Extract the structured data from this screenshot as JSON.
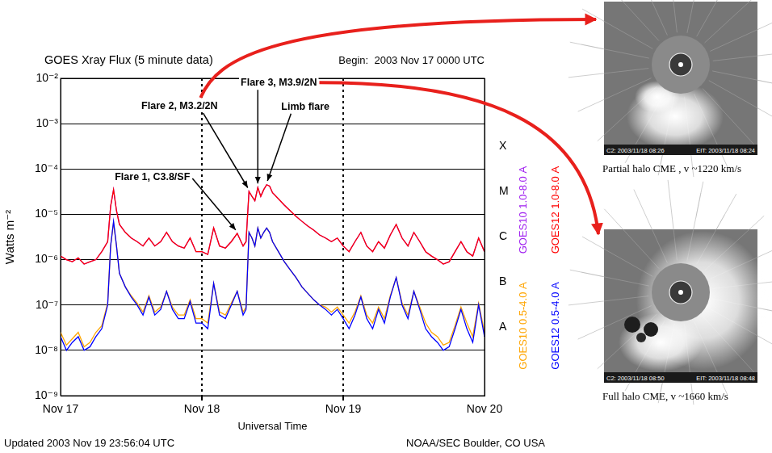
{
  "chart_data": {
    "type": "line",
    "title": "GOES Xray Flux (5 minute data)",
    "subtitle": "Begin:  2003 Nov 17 0000 UTC",
    "x_label": "Universal Time",
    "y_label": "Watts m⁻²",
    "log": "y",
    "grid": true,
    "legend": "right",
    "x": [
      0,
      1,
      2,
      3,
      4,
      5,
      6,
      7,
      8,
      8.5,
      9,
      9.5,
      10,
      11,
      12,
      13,
      14,
      15,
      16,
      17,
      18,
      19,
      20,
      21,
      22,
      23,
      24,
      25,
      26,
      27,
      28,
      29,
      30,
      31,
      31.5,
      32,
      32.5,
      33,
      33.5,
      34,
      34.5,
      35,
      35.5,
      36,
      37,
      38,
      39,
      40,
      41,
      42,
      43,
      44,
      45,
      46,
      47,
      48,
      49,
      50,
      51,
      52,
      53,
      54,
      55,
      56,
      57,
      58,
      59,
      60,
      61,
      62,
      63,
      64,
      65,
      66,
      67,
      68,
      69,
      70,
      71,
      72
    ],
    "xlim": [
      0,
      72
    ],
    "xticks": [
      {
        "value": 0,
        "label": "Nov 17"
      },
      {
        "value": 24,
        "label": "Nov 18"
      },
      {
        "value": 48,
        "label": "Nov 19"
      },
      {
        "value": 72,
        "label": "Nov 20"
      }
    ],
    "ylim": [
      1e-09,
      0.01
    ],
    "yticks": [
      {
        "value": 1e-09,
        "label": "10⁻⁹"
      },
      {
        "value": 1e-08,
        "label": "10⁻⁸"
      },
      {
        "value": 1e-07,
        "label": "10⁻⁷"
      },
      {
        "value": 1e-06,
        "label": "10⁻⁶"
      },
      {
        "value": 1e-05,
        "label": "10⁻⁵"
      },
      {
        "value": 0.0001,
        "label": "10⁻⁴"
      },
      {
        "value": 0.001,
        "label": "10⁻³"
      },
      {
        "value": 0.01,
        "label": "10⁻²"
      }
    ],
    "y2lim": [
      1e-09,
      0.01
    ],
    "y2ticks": [
      {
        "value": 3.2e-08,
        "label": "A"
      },
      {
        "value": 3.2e-07,
        "label": "B"
      },
      {
        "value": 3.2e-06,
        "label": "C"
      },
      {
        "value": 3.2e-05,
        "label": "M"
      },
      {
        "value": 0.00032,
        "label": "X"
      }
    ],
    "series": [
      {
        "name": "GOES12 1.0-8.0 A",
        "color": "#ff0000",
        "values": [
          1.2e-06,
          1e-06,
          9e-07,
          1.1e-06,
          8e-07,
          9e-07,
          1e-06,
          1.5e-06,
          2.5e-06,
          1.5e-05,
          3.5e-05,
          1.2e-05,
          6e-06,
          4e-06,
          3e-06,
          2.5e-06,
          2e-06,
          3e-06,
          2e-06,
          2.5e-06,
          4e-06,
          2.5e-06,
          2e-06,
          1.8e-06,
          3e-06,
          1.5e-06,
          1.5e-06,
          1.3e-06,
          5e-06,
          2e-06,
          1.8e-06,
          2.5e-06,
          3.8e-06,
          2e-06,
          2.5e-06,
          3.2e-05,
          2.5e-05,
          2e-05,
          3.9e-05,
          2.5e-05,
          3.5e-05,
          4.5e-05,
          4.2e-05,
          3e-05,
          2.2e-05,
          1.6e-05,
          1.2e-05,
          9e-06,
          7e-06,
          5.5e-06,
          4.5e-06,
          3.5e-06,
          3e-06,
          2.5e-06,
          3e-06,
          2e-06,
          1.5e-06,
          2.5e-06,
          4e-06,
          2e-06,
          1.5e-06,
          2.5e-06,
          1.8e-06,
          3.5e-06,
          6e-06,
          3e-06,
          2e-06,
          4e-06,
          2.5e-06,
          1.5e-06,
          1.2e-06,
          1e-06,
          8e-07,
          9e-07,
          1.5e-06,
          2.5e-06,
          1.5e-06,
          1.2e-06,
          3e-06,
          1.5e-06
        ]
      },
      {
        "name": "GOES12 0.5-4.0 A",
        "color": "#0000ff",
        "values": [
          2e-08,
          1e-08,
          1.5e-08,
          2e-08,
          1e-08,
          1.2e-08,
          2e-08,
          3e-08,
          1e-07,
          2e-06,
          7e-06,
          2e-06,
          5e-07,
          2.5e-07,
          1.5e-07,
          1e-07,
          6e-08,
          1.5e-07,
          6e-08,
          8e-08,
          2e-07,
          8e-08,
          5e-08,
          5e-08,
          1.2e-07,
          4e-08,
          4e-08,
          3e-08,
          3e-07,
          6e-08,
          5e-08,
          1e-07,
          2e-07,
          6e-08,
          8e-08,
          4e-06,
          3e-06,
          2e-06,
          5e-06,
          3e-06,
          4e-06,
          5e-06,
          4e-06,
          2.5e-06,
          1.5e-06,
          9e-07,
          6e-07,
          4e-07,
          2.5e-07,
          1.8e-07,
          1.3e-07,
          1e-07,
          8e-08,
          6e-08,
          8e-08,
          5e-08,
          3e-08,
          6e-08,
          1.5e-07,
          5e-08,
          3e-08,
          8e-08,
          4e-08,
          1.5e-07,
          4e-07,
          1e-07,
          5e-08,
          2e-07,
          8e-08,
          3e-08,
          2e-08,
          1.5e-08,
          1e-08,
          1.2e-08,
          3e-08,
          8e-08,
          3e-08,
          1.5e-08,
          1e-07,
          2e-08
        ]
      },
      {
        "name": "GOES10 0.5-4.0 A",
        "color": "#ffa500",
        "values": [
          2.5e-08,
          1.3e-08,
          1.8e-08,
          2.5e-08,
          1.2e-08,
          1.5e-08,
          2.5e-08,
          3.5e-08,
          1.1e-07,
          2e-06,
          6.5e-06,
          2e-06,
          5e-07,
          2.5e-07,
          1.6e-07,
          1.1e-07,
          7e-08,
          1.6e-07,
          7e-08,
          9e-08,
          2e-07,
          9e-08,
          6e-08,
          6e-08,
          1.3e-07,
          5e-08,
          5e-08,
          4e-08,
          3e-07,
          7e-08,
          6e-08,
          1.1e-07,
          2e-07,
          7e-08,
          9e-08,
          4e-06,
          3e-06,
          2e-06,
          5e-06,
          3e-06,
          4e-06,
          5e-06,
          4e-06,
          2.5e-06,
          1.5e-06,
          9e-07,
          6e-07,
          4e-07,
          2.5e-07,
          1.8e-07,
          1.3e-07,
          1e-07,
          9e-08,
          7e-08,
          9e-08,
          6e-08,
          4e-08,
          7e-08,
          1.6e-07,
          6e-08,
          4e-08,
          9e-08,
          5e-08,
          1.6e-07,
          4e-07,
          1.1e-07,
          6e-08,
          2e-07,
          9e-08,
          4e-08,
          2.5e-08,
          2e-08,
          1.3e-08,
          1.5e-08,
          3.5e-08,
          9e-08,
          4e-08,
          2e-08,
          1.1e-07,
          2.5e-08
        ]
      },
      {
        "name": "GOES10 1.0-8.0 A",
        "color": "#a020f0",
        "values": [
          1.2e-06,
          1e-06,
          9e-07,
          1.1e-06,
          8e-07,
          9e-07,
          1e-06,
          1.5e-06,
          2.5e-06,
          1.5e-05,
          3.5e-05,
          1.2e-05,
          6e-06,
          4e-06,
          3e-06,
          2.5e-06,
          2e-06,
          3e-06,
          2e-06,
          2.5e-06,
          4e-06,
          2.5e-06,
          2e-06,
          1.8e-06,
          3e-06,
          1.5e-06,
          1.5e-06,
          1.3e-06,
          5e-06,
          2e-06,
          1.8e-06,
          2.5e-06,
          3.8e-06,
          2e-06,
          2.5e-06,
          3.2e-05,
          2.5e-05,
          2e-05,
          3.9e-05,
          2.5e-05,
          3.5e-05,
          4.5e-05,
          4.2e-05,
          3e-05,
          2.2e-05,
          1.6e-05,
          1.2e-05,
          9e-06,
          7e-06,
          5.5e-06,
          4.5e-06,
          3.5e-06,
          3e-06,
          2.5e-06,
          3e-06,
          2e-06,
          1.5e-06,
          2.5e-06,
          4e-06,
          2e-06,
          1.5e-06,
          2.5e-06,
          1.8e-06,
          3.5e-06,
          6e-06,
          3e-06,
          2e-06,
          4e-06,
          2.5e-06,
          1.5e-06,
          1.2e-06,
          1e-06,
          8e-07,
          9e-07,
          1.5e-06,
          2.5e-06,
          1.5e-06,
          1.2e-06,
          3e-06,
          1.5e-06
        ]
      }
    ],
    "annotations": [
      {
        "text": "Flare 1, C3.8/SF",
        "x": 30,
        "y": 3.8e-06
      },
      {
        "text": "Flare 2, M3.2/2N",
        "x": 32,
        "y": 3.2e-05
      },
      {
        "text": "Flare 3, M3.9/2N",
        "x": 33.5,
        "y": 3.9e-05
      },
      {
        "text": "Limb flare",
        "x": 35,
        "y": 4.5e-05
      }
    ],
    "footer": [
      "Updated 2003 Nov 19 23:56:04 UTC",
      "NOAA/SEC Boulder, CO USA"
    ]
  },
  "figures": [
    {
      "caption": "Partial halo CME , v ~1220 km/s",
      "image_labels": [
        "C2: 2003/11/18 08:26",
        "EIT: 2003/11/18 08:24"
      ]
    },
    {
      "caption": "Full halo CME,  v ~1660 km/s",
      "image_labels": [
        "C2: 2003/11/18 08:50",
        "EIT: 2003/11/18 08:48"
      ]
    }
  ]
}
